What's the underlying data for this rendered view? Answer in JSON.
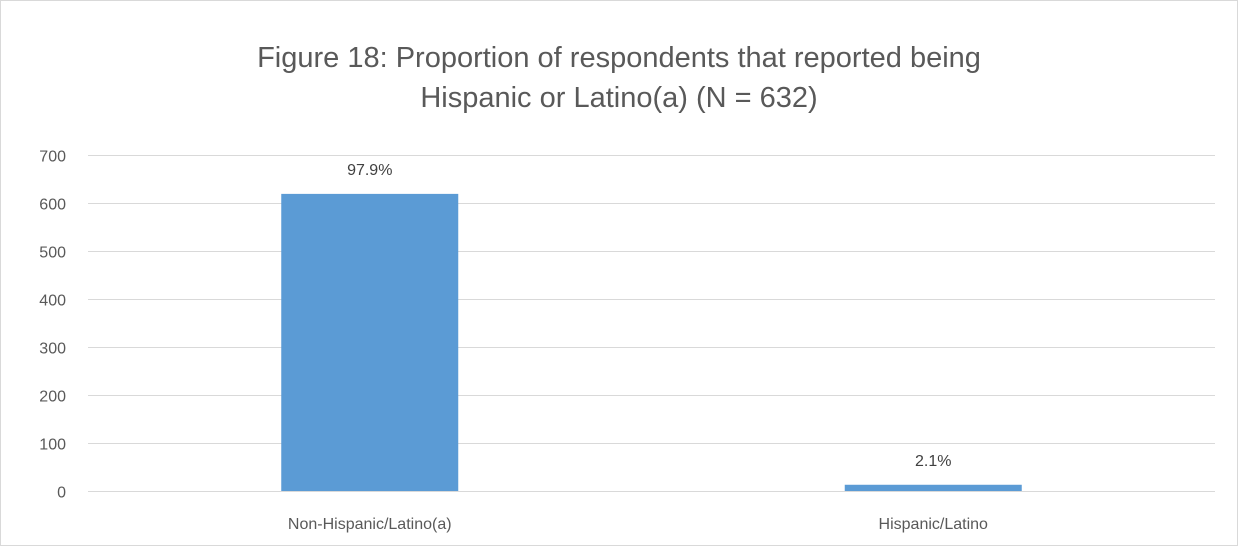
{
  "chart_data": {
    "type": "bar",
    "title_lines": [
      "Figure 18: Proportion of respondents that reported being",
      "Hispanic or Latino(a) (N = 632)"
    ],
    "categories": [
      "Non-Hispanic/Latino(a)",
      "Hispanic/Latino"
    ],
    "values": [
      619,
      13
    ],
    "data_labels": [
      "97.9%",
      "2.1%"
    ],
    "xlabel": "",
    "ylabel": "",
    "ylim": [
      0,
      700
    ],
    "yticks": [
      0,
      100,
      200,
      300,
      400,
      500,
      600,
      700
    ],
    "grid": true,
    "legend": "none",
    "colors": {
      "bar": "#5b9bd5",
      "grid": "#d9d9d9",
      "text": "#595959"
    }
  }
}
